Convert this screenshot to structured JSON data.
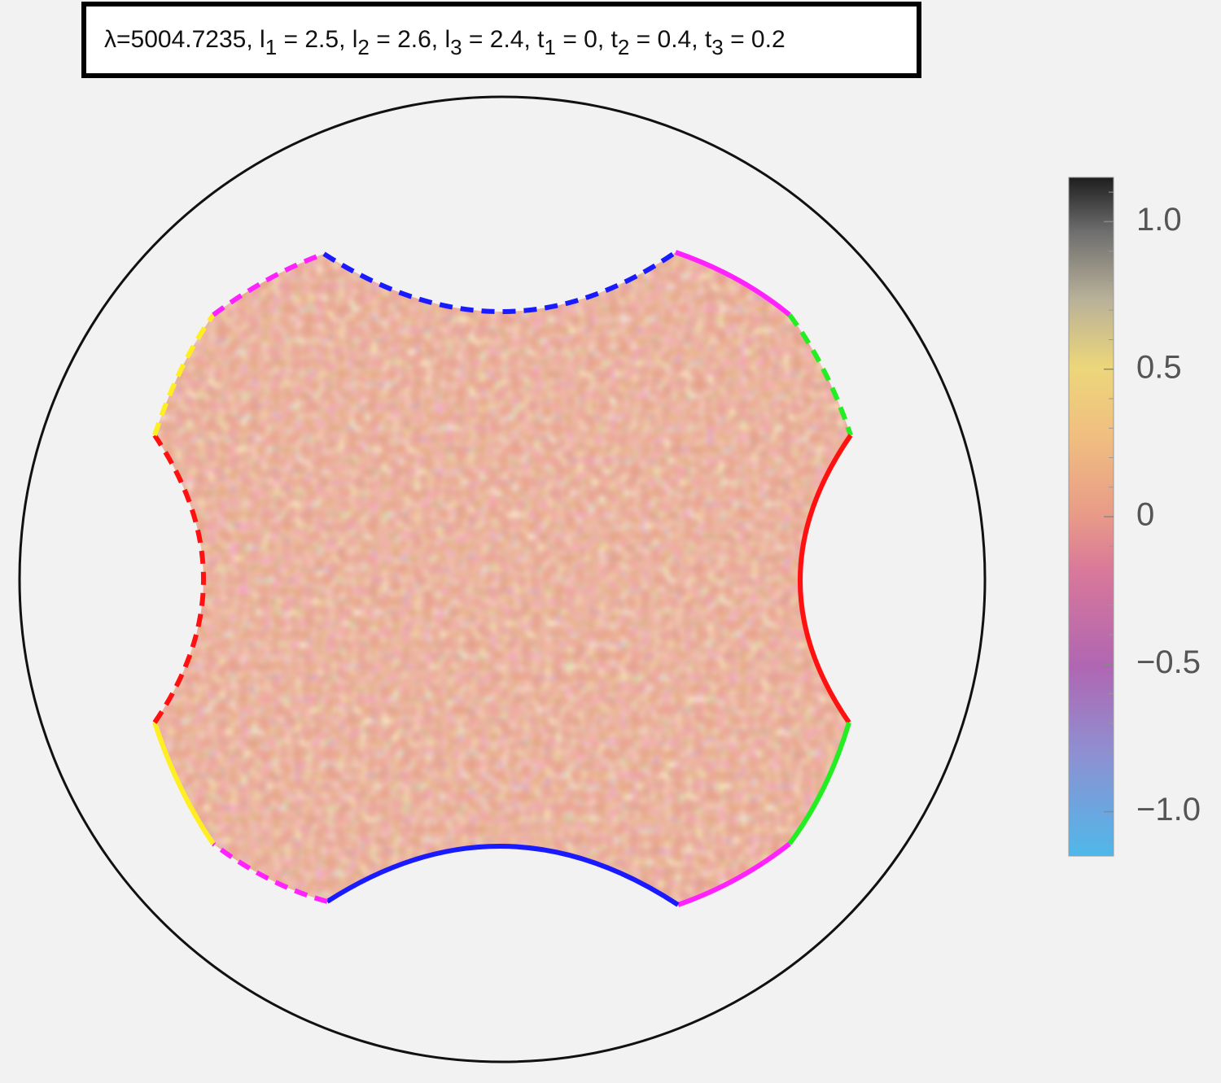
{
  "header": {
    "lambda": "λ=5004.7235",
    "separator": ", ",
    "params": [
      {
        "name": "l",
        "sub": "1",
        "text": " = 2.5"
      },
      {
        "name": "l",
        "sub": "2",
        "text": " = 2.6"
      },
      {
        "name": "l",
        "sub": "3",
        "text": " = 2.4"
      },
      {
        "name": "t",
        "sub": "1",
        "text": " = 0"
      },
      {
        "name": "t",
        "sub": "2",
        "text": " = 0.4"
      },
      {
        "name": "t",
        "sub": "3",
        "text": " = 0.2"
      }
    ]
  },
  "colorbar": {
    "lim": [
      -1.15,
      1.15
    ],
    "ticks": [
      {
        "value": 1.0,
        "label": "1.0"
      },
      {
        "value": 0.5,
        "label": "0.5"
      },
      0,
      {
        "value": -0.5,
        "label": "−0.5"
      },
      {
        "value": -1.0,
        "label": "−1.0"
      }
    ],
    "minor_ticks": [
      -1.1,
      -0.9,
      -0.8,
      -0.7,
      -0.6,
      -0.4,
      -0.3,
      -0.2,
      -0.1,
      0.1,
      0.2,
      0.3,
      0.4,
      0.6,
      0.7,
      0.8,
      0.9,
      1.1
    ]
  }
}
